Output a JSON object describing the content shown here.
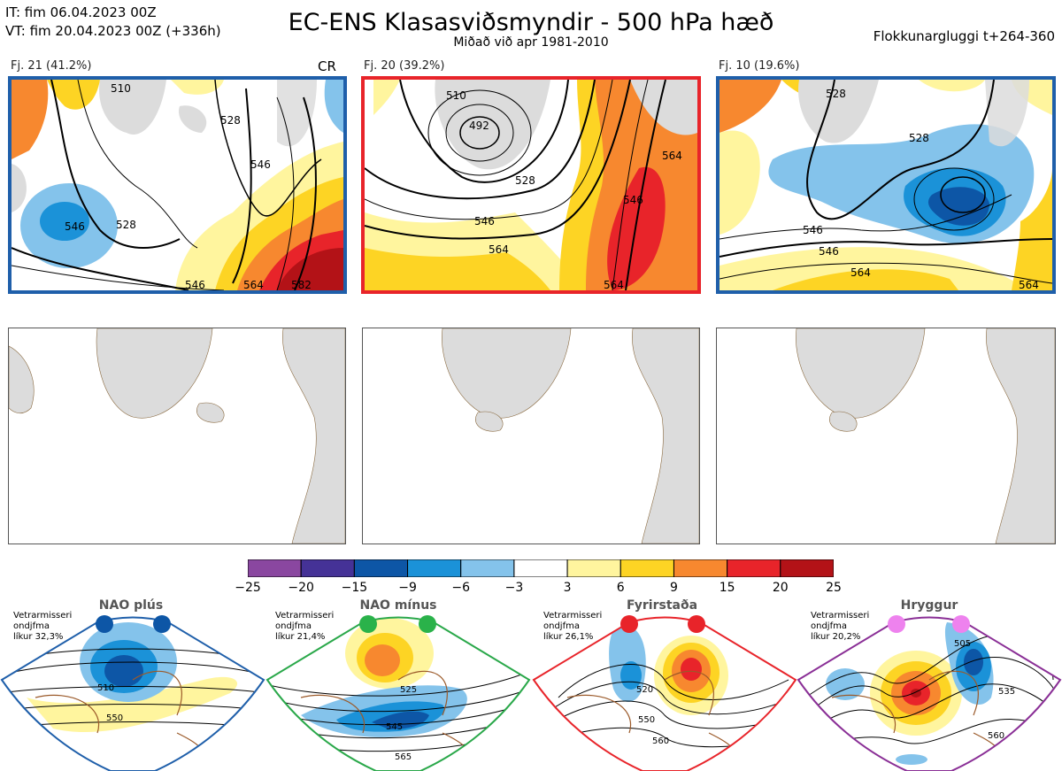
{
  "header": {
    "init_time": "IT: fim 06.04.2023 00Z",
    "valid_time": "VT: fim 20.04.2023 00Z  (+336h)",
    "title": "EC-ENS Klasasviðsmyndir - 500 hPa hæð",
    "subtitle": "Miðað við apr 1981-2010",
    "window": "Flokkunargluggi t+264-360"
  },
  "clusters": [
    {
      "label": "Fj. 21 (41.2%)",
      "tag": "CR",
      "frame_color": "#1f5faa",
      "contour_labels": [
        "510",
        "528",
        "546",
        "546",
        "528",
        "546",
        "564",
        "582"
      ]
    },
    {
      "label": "Fj. 20 (39.2%)",
      "tag": "",
      "frame_color": "#e8242a",
      "contour_labels": [
        "510",
        "492",
        "528",
        "546",
        "564",
        "546",
        "564",
        "564"
      ]
    },
    {
      "label": "Fj. 10 (19.6%)",
      "tag": "",
      "frame_color": "#1f5faa",
      "contour_labels": [
        "528",
        "528",
        "546",
        "546",
        "564",
        "564"
      ]
    }
  ],
  "colorbar": {
    "ticks": [
      "−25",
      "−20",
      "−15",
      "−9",
      "−6",
      "−3",
      "3",
      "6",
      "9",
      "15",
      "20",
      "25"
    ],
    "colors": [
      "#8a47a0",
      "#453297",
      "#0d56a6",
      "#1b92d8",
      "#84c3eb",
      "#ffffff",
      "#fff59e",
      "#fdd424",
      "#f7882f",
      "#e8242a",
      "#b31217"
    ]
  },
  "regimes": [
    {
      "name": "NAO plús",
      "note": [
        "Vetrarmisseri",
        "ondjfma",
        "líkur 32,3%"
      ],
      "color": "#1f5faa",
      "dot_color": "#0d56a6",
      "contour_labels": [
        "510",
        "550"
      ]
    },
    {
      "name": "NAO mínus",
      "note": [
        "Vetrarmisseri",
        "ondjfma",
        "líkur 21,4%"
      ],
      "color": "#2aa84a",
      "dot_color": "#2ab24a",
      "contour_labels": [
        "525",
        "545",
        "565"
      ]
    },
    {
      "name": "Fyrirstaða",
      "note": [
        "Vetrarmisseri",
        "ondjfma",
        "líkur 26,1%"
      ],
      "color": "#e8242a",
      "dot_color": "#e8242a",
      "contour_labels": [
        "520",
        "550",
        "560"
      ]
    },
    {
      "name": "Hryggur",
      "note": [
        "Vetrarmisseri",
        "ondjfma",
        "líkur 20,2%"
      ],
      "color": "#8a2f96",
      "dot_color": "#ee82ee",
      "contour_labels": [
        "505",
        "535",
        "560"
      ]
    }
  ]
}
